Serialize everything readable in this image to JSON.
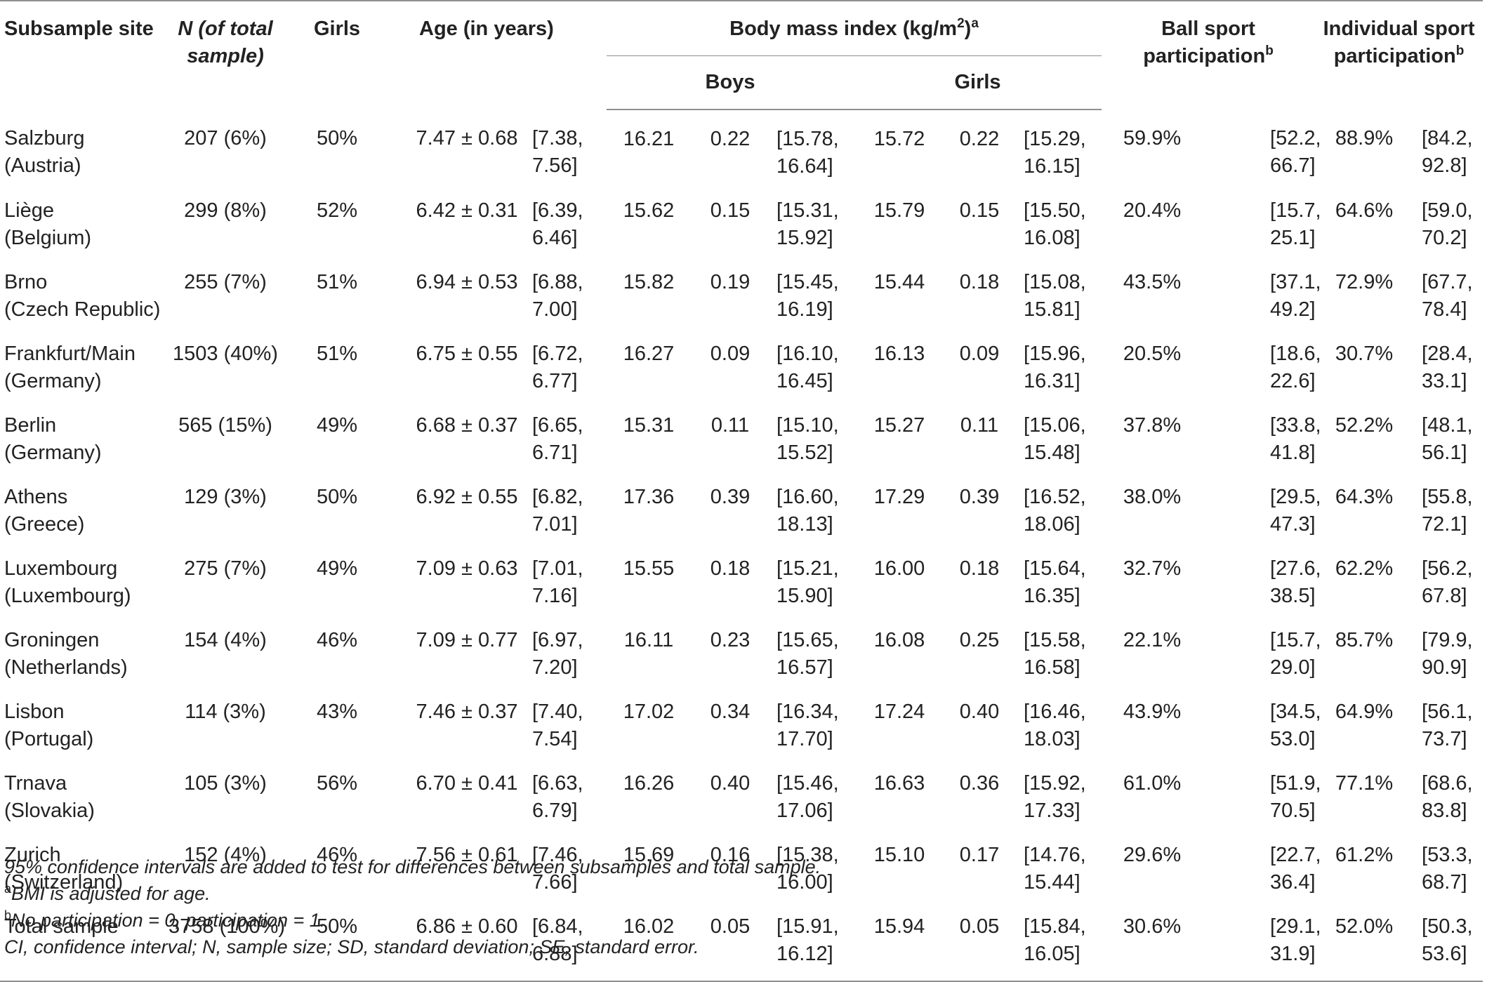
{
  "header": {
    "site": "Subsample site",
    "n": "N (of total sample)",
    "girls": "Girls",
    "age": "Age (in years)",
    "bmi": "Body mass index (kg/m",
    "bmi_exp": "2",
    "bmi_close": ")",
    "bmi_note": "a",
    "bmi_boys": "Boys",
    "bmi_girls": "Girls",
    "ball": "Ball sport participation",
    "ball_note": "b",
    "indiv": "Individual sport participation",
    "indiv_note": "b"
  },
  "rows": [
    {
      "site1": "Salzburg",
      "site2": "(Austria)",
      "n": "207 (6%)",
      "girls": "50%",
      "age": "7.47 ± 0.68",
      "age_ci1": "[7.38,",
      "age_ci2": "7.56]",
      "boys_m": "16.21",
      "boys_se": "0.22",
      "boys_ci1": "[15.78,",
      "boys_ci2": "16.64]",
      "girls_m": "15.72",
      "girls_se": "0.22",
      "girls_ci1": "[15.29,",
      "girls_ci2": "16.15]",
      "ball": "59.9%",
      "ball_ci1": "[52.2,",
      "ball_ci2": "66.7]",
      "ind": "88.9%",
      "ind_ci1": "[84.2,",
      "ind_ci2": "92.8]"
    },
    {
      "site1": "Liège",
      "site2": "(Belgium)",
      "n": "299 (8%)",
      "girls": "52%",
      "age": "6.42 ± 0.31",
      "age_ci1": "[6.39,",
      "age_ci2": "6.46]",
      "boys_m": "15.62",
      "boys_se": "0.15",
      "boys_ci1": "[15.31,",
      "boys_ci2": "15.92]",
      "girls_m": "15.79",
      "girls_se": "0.15",
      "girls_ci1": "[15.50,",
      "girls_ci2": "16.08]",
      "ball": "20.4%",
      "ball_ci1": "[15.7,",
      "ball_ci2": "25.1]",
      "ind": "64.6%",
      "ind_ci1": "[59.0,",
      "ind_ci2": "70.2]"
    },
    {
      "site1": "Brno",
      "site2": "(Czech Republic)",
      "n": "255 (7%)",
      "girls": "51%",
      "age": "6.94 ± 0.53",
      "age_ci1": "[6.88,",
      "age_ci2": "7.00]",
      "boys_m": "15.82",
      "boys_se": "0.19",
      "boys_ci1": "[15.45,",
      "boys_ci2": "16.19]",
      "girls_m": "15.44",
      "girls_se": "0.18",
      "girls_ci1": "[15.08,",
      "girls_ci2": "15.81]",
      "ball": "43.5%",
      "ball_ci1": "[37.1,",
      "ball_ci2": "49.2]",
      "ind": "72.9%",
      "ind_ci1": "[67.7,",
      "ind_ci2": "78.4]"
    },
    {
      "site1": "Frankfurt/Main",
      "site2": "(Germany)",
      "n": "1503 (40%)",
      "girls": "51%",
      "age": "6.75 ± 0.55",
      "age_ci1": "[6.72,",
      "age_ci2": "6.77]",
      "boys_m": "16.27",
      "boys_se": "0.09",
      "boys_ci1": "[16.10,",
      "boys_ci2": "16.45]",
      "girls_m": "16.13",
      "girls_se": "0.09",
      "girls_ci1": "[15.96,",
      "girls_ci2": "16.31]",
      "ball": "20.5%",
      "ball_ci1": "[18.6,",
      "ball_ci2": "22.6]",
      "ind": "30.7%",
      "ind_ci1": "[28.4,",
      "ind_ci2": "33.1]"
    },
    {
      "site1": "Berlin",
      "site2": "(Germany)",
      "n": "565 (15%)",
      "girls": "49%",
      "age": "6.68 ± 0.37",
      "age_ci1": "[6.65,",
      "age_ci2": "6.71]",
      "boys_m": "15.31",
      "boys_se": "0.11",
      "boys_ci1": "[15.10,",
      "boys_ci2": "15.52]",
      "girls_m": "15.27",
      "girls_se": "0.11",
      "girls_ci1": "[15.06,",
      "girls_ci2": "15.48]",
      "ball": "37.8%",
      "ball_ci1": "[33.8,",
      "ball_ci2": "41.8]",
      "ind": "52.2%",
      "ind_ci1": "[48.1,",
      "ind_ci2": "56.1]"
    },
    {
      "site1": "Athens",
      "site2": "(Greece)",
      "n": "129 (3%)",
      "girls": "50%",
      "age": "6.92 ± 0.55",
      "age_ci1": "[6.82,",
      "age_ci2": "7.01]",
      "boys_m": "17.36",
      "boys_se": "0.39",
      "boys_ci1": "[16.60,",
      "boys_ci2": "18.13]",
      "girls_m": "17.29",
      "girls_se": "0.39",
      "girls_ci1": "[16.52,",
      "girls_ci2": "18.06]",
      "ball": "38.0%",
      "ball_ci1": "[29.5,",
      "ball_ci2": "47.3]",
      "ind": "64.3%",
      "ind_ci1": "[55.8,",
      "ind_ci2": "72.1]"
    },
    {
      "site1": "Luxembourg",
      "site2": "(Luxembourg)",
      "n": "275 (7%)",
      "girls": "49%",
      "age": "7.09 ± 0.63",
      "age_ci1": "[7.01,",
      "age_ci2": "7.16]",
      "boys_m": "15.55",
      "boys_se": "0.18",
      "boys_ci1": "[15.21,",
      "boys_ci2": "15.90]",
      "girls_m": "16.00",
      "girls_se": "0.18",
      "girls_ci1": "[15.64,",
      "girls_ci2": "16.35]",
      "ball": "32.7%",
      "ball_ci1": "[27.6,",
      "ball_ci2": "38.5]",
      "ind": "62.2%",
      "ind_ci1": "[56.2,",
      "ind_ci2": "67.8]"
    },
    {
      "site1": "Groningen",
      "site2": "(Netherlands)",
      "n": "154 (4%)",
      "girls": "46%",
      "age": "7.09 ± 0.77",
      "age_ci1": "[6.97,",
      "age_ci2": "7.20]",
      "boys_m": "16.11",
      "boys_se": "0.23",
      "boys_ci1": "[15.65,",
      "boys_ci2": "16.57]",
      "girls_m": "16.08",
      "girls_se": "0.25",
      "girls_ci1": "[15.58,",
      "girls_ci2": "16.58]",
      "ball": "22.1%",
      "ball_ci1": "[15.7,",
      "ball_ci2": "29.0]",
      "ind": "85.7%",
      "ind_ci1": "[79.9,",
      "ind_ci2": "90.9]"
    },
    {
      "site1": "Lisbon",
      "site2": "(Portugal)",
      "n": "114 (3%)",
      "girls": "43%",
      "age": "7.46 ± 0.37",
      "age_ci1": "[7.40,",
      "age_ci2": "7.54]",
      "boys_m": "17.02",
      "boys_se": "0.34",
      "boys_ci1": "[16.34,",
      "boys_ci2": "17.70]",
      "girls_m": "17.24",
      "girls_se": "0.40",
      "girls_ci1": "[16.46,",
      "girls_ci2": "18.03]",
      "ball": "43.9%",
      "ball_ci1": "[34.5,",
      "ball_ci2": "53.0]",
      "ind": "64.9%",
      "ind_ci1": "[56.1,",
      "ind_ci2": "73.7]"
    },
    {
      "site1": "Trnava",
      "site2": "(Slovakia)",
      "n": "105 (3%)",
      "girls": "56%",
      "age": "6.70 ± 0.41",
      "age_ci1": "[6.63,",
      "age_ci2": "6.79]",
      "boys_m": "16.26",
      "boys_se": "0.40",
      "boys_ci1": "[15.46,",
      "boys_ci2": "17.06]",
      "girls_m": "16.63",
      "girls_se": "0.36",
      "girls_ci1": "[15.92,",
      "girls_ci2": "17.33]",
      "ball": "61.0%",
      "ball_ci1": "[51.9,",
      "ball_ci2": "70.5]",
      "ind": "77.1%",
      "ind_ci1": "[68.6,",
      "ind_ci2": "83.8]"
    },
    {
      "site1": "Zurich",
      "site2": "(Switzerland)",
      "n": "152 (4%)",
      "girls": "46%",
      "age": "7.56 ± 0.61",
      "age_ci1": "[7.46,",
      "age_ci2": "7.66]",
      "boys_m": "15.69",
      "boys_se": "0.16",
      "boys_ci1": "[15.38,",
      "boys_ci2": "16.00]",
      "girls_m": "15.10",
      "girls_se": "0.17",
      "girls_ci1": "[14.76,",
      "girls_ci2": "15.44]",
      "ball": "29.6%",
      "ball_ci1": "[22.7,",
      "ball_ci2": "36.4]",
      "ind": "61.2%",
      "ind_ci1": "[53.3,",
      "ind_ci2": "68.7]"
    },
    {
      "site1": "Total sample",
      "site2": "",
      "n": "3758 (100%)",
      "girls": "50%",
      "age": "6.86 ± 0.60",
      "age_ci1": "[6.84,",
      "age_ci2": "6.88]",
      "boys_m": "16.02",
      "boys_se": "0.05",
      "boys_ci1": "[15.91,",
      "boys_ci2": "16.12]",
      "girls_m": "15.94",
      "girls_se": "0.05",
      "girls_ci1": "[15.84,",
      "girls_ci2": "16.05]",
      "ball": "30.6%",
      "ball_ci1": "[29.1,",
      "ball_ci2": "31.9]",
      "ind": "52.0%",
      "ind_ci1": "[50.3,",
      "ind_ci2": "53.6]"
    }
  ],
  "notes": {
    "ci": "95% confidence intervals are added to test for differences between subsamples and total sample.",
    "a_mark": "a",
    "a_text": "BMI is adjusted for age.",
    "b_mark": "b",
    "b_text": "No participation = 0, participation = 1.",
    "abbr": "CI, confidence interval; N, sample size; SD, standard deviation; SE, standard error."
  }
}
